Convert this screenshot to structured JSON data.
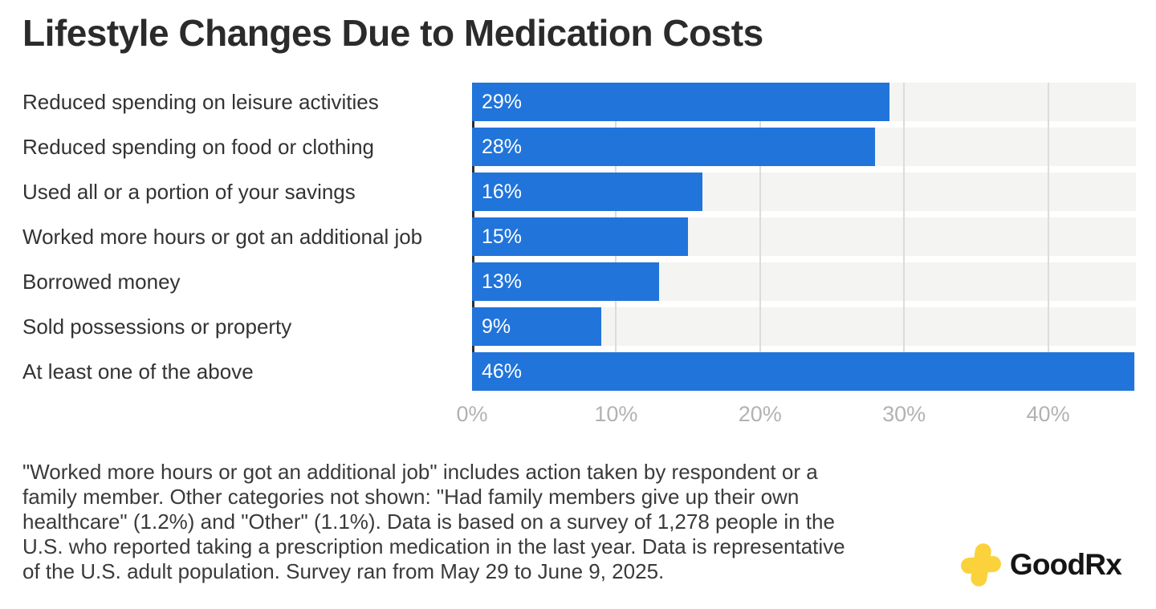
{
  "title": "Lifestyle Changes Due to Medication Costs",
  "chart_data": {
    "type": "bar",
    "orientation": "horizontal",
    "title": "Lifestyle Changes Due to Medication Costs",
    "categories": [
      "Reduced spending on leisure activities",
      "Reduced spending on food or clothing",
      "Used all or a portion of your savings",
      "Worked more hours or got an additional job",
      "Borrowed money",
      "Sold possessions or property",
      "At least one of the above"
    ],
    "values": [
      29,
      28,
      16,
      15,
      13,
      9,
      46
    ],
    "value_labels": [
      "29%",
      "28%",
      "16%",
      "15%",
      "13%",
      "9%",
      "46%"
    ],
    "xlim": [
      0,
      46.1
    ],
    "x_ticks": [
      {
        "value": 0,
        "label": "0%"
      },
      {
        "value": 10,
        "label": "10%"
      },
      {
        "value": 20,
        "label": "20%"
      },
      {
        "value": 30,
        "label": "30%"
      },
      {
        "value": 40,
        "label": "40%"
      }
    ],
    "grid": true,
    "legend_position": "none",
    "bar_color": "#2174DA",
    "track_color": "#F4F4F2",
    "gridline_color": "#DCDCDA",
    "axis_line_color": "#2F2F2F",
    "tick_label_color": "#B2B2B2",
    "value_label_color": "#FFFFFF",
    "category_label_color": "#333333"
  },
  "footnote": {
    "text": "\"Worked more hours or got an additional job\" includes action taken by respondent or a\nfamily member. Other categories not shown: \"Had family members give up their own\nhealthcare\" (1.2%) and \"Other\" (1.1%). Data is based on a survey of 1,278 people in the\nU.S. who reported taking a prescription medication in the last year. Data is representative\nof the U.S. adult population. Survey ran from May 29 to June 9, 2025."
  },
  "logo": {
    "text": "GoodRx",
    "cross_color": "#FBD23C",
    "text_color": "#151515"
  }
}
